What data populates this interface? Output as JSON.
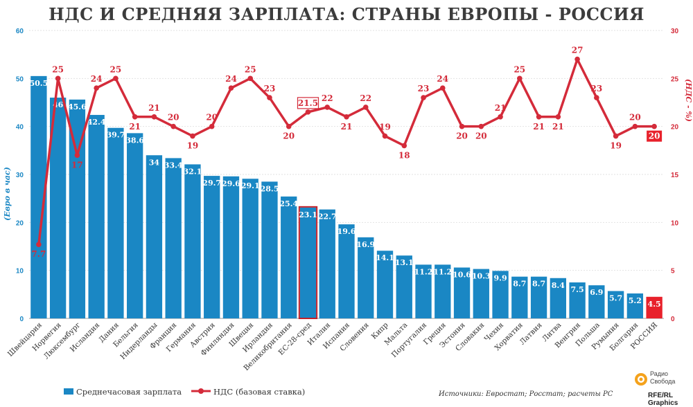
{
  "title": "НДС И СРЕДНЯЯ ЗАРПЛАТА: СТРАНЫ ЕВРОПЫ - РОССИЯ",
  "colors": {
    "bar": "#1a87c4",
    "line": "#d42b3a",
    "highlight_bar": "#e8212b",
    "highlight_outline": "#c0202a",
    "left_axis": "#1a87c4",
    "right_axis": "#d42b3a"
  },
  "legend": {
    "bar_label": "Среднечасовая зарплата",
    "line_label": "НДС (базовая ставка)"
  },
  "source": "Источники: Евростат; Росстат; расчеты РС",
  "credit": "RFE/RL Graphics",
  "logo": {
    "line1": "Радио",
    "line2": "Свобода"
  },
  "chart_data": {
    "type": "bar+line",
    "title": "НДС И СРЕДНЯЯ ЗАРПЛАТА: СТРАНЫ ЕВРОПЫ - РОССИЯ",
    "ylabel_left": "(Евро в час)",
    "ylabel_right": "(НДС - %)",
    "ylim_left": [
      0,
      60
    ],
    "yticks_left": [
      0,
      10,
      20,
      30,
      40,
      50,
      60
    ],
    "ylim_right": [
      0,
      30
    ],
    "yticks_right": [
      0,
      5,
      10,
      15,
      20,
      25,
      30
    ],
    "grid": true,
    "legend_position": "bottom-left",
    "categories": [
      "Швейцария",
      "Норвегия",
      "Люксембург",
      "Исландия",
      "Дания",
      "Бельгия",
      "Нидерланды",
      "Франция",
      "Германия",
      "Австрия",
      "Финляндия",
      "Швеция",
      "Ирландия",
      "Великобритания",
      "ЕС-28-сред",
      "Италия",
      "Испания",
      "Словения",
      "Кипр",
      "Мальта",
      "Португалия",
      "Греция",
      "Эстония",
      "Словакия",
      "Чехия",
      "Хорватия",
      "Латвия",
      "Литва",
      "Венгрия",
      "Польша",
      "Румыния",
      "Болгария",
      "РОССИЯ"
    ],
    "series": [
      {
        "name": "Среднечасовая зарплата",
        "kind": "bar",
        "axis": "left",
        "values": [
          50.5,
          46,
          45.6,
          42.4,
          39.7,
          38.6,
          34,
          33.4,
          32.1,
          29.7,
          29.6,
          29.1,
          28.5,
          25.4,
          23.1,
          22.7,
          19.6,
          16.9,
          14.1,
          13.1,
          11.2,
          11.2,
          10.6,
          10.3,
          9.9,
          8.7,
          8.7,
          8.4,
          7.5,
          6.9,
          5.7,
          5.2,
          4.5
        ],
        "labels": [
          "50.5",
          "46",
          "45.6",
          "42.4",
          "39.7",
          "38.6",
          "34",
          "33.4",
          "32.1",
          "29.7",
          "29.6",
          "29.1",
          "28.5",
          "25.4",
          "23.1",
          "22.7",
          "19.6",
          "16.9",
          "14.1",
          "13.1",
          "11.2",
          "11.2",
          "10.6",
          "10.3",
          "9.9",
          "8.7",
          "8.7",
          "8.4",
          "7.5",
          "6.9",
          "5.7",
          "5.2",
          "4.5"
        ]
      },
      {
        "name": "НДС (базовая ставка)",
        "kind": "line",
        "axis": "right",
        "values": [
          7.7,
          25,
          17,
          24,
          25,
          21,
          21,
          20,
          19,
          20,
          24,
          25,
          23,
          20,
          21.5,
          22,
          21,
          22,
          19,
          18,
          23,
          24,
          20,
          20,
          21,
          25,
          21,
          21,
          27,
          23,
          19,
          20,
          20
        ],
        "labels": [
          "7.7",
          "25",
          "17",
          "24",
          "25",
          "21",
          "21",
          "20",
          "19",
          "20",
          "24",
          "25",
          "23",
          "20",
          "21.5",
          "22",
          "21",
          "22",
          "19",
          "18",
          "23",
          "24",
          "20",
          "20",
          "21",
          "25",
          "21",
          "21",
          "27",
          "23",
          "19",
          "20",
          "20"
        ]
      }
    ],
    "highlight": {
      "eu_average": "ЕС-28-сред",
      "russia": "РОССИЯ"
    }
  }
}
